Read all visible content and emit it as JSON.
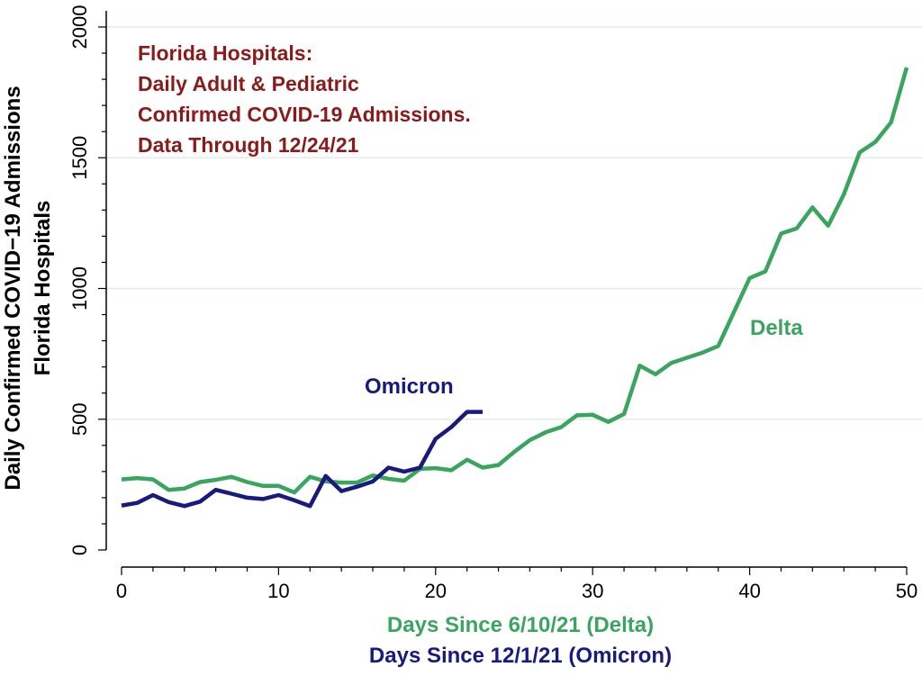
{
  "chart_data": {
    "type": "line",
    "annotation_lines": [
      "Florida Hospitals:",
      "Daily Adult & Pediatric",
      "Confirmed COVID-19 Admissions.",
      "Data Through 12/24/21"
    ],
    "ylabel_lines": [
      "Daily Confirmed COVID−19 Admissions",
      "Florida Hospitals"
    ],
    "xlabel_lines": [
      {
        "text": "Days Since 6/10/21 (Delta)",
        "color": "#3aa55f"
      },
      {
        "text": "Days Since 12/1/21 (Omicron)",
        "color": "#1a1a7e"
      }
    ],
    "xlim": [
      0,
      50
    ],
    "ylim": [
      0,
      2000
    ],
    "xticks": [
      0,
      10,
      20,
      30,
      40,
      50
    ],
    "yticks": [
      0,
      500,
      1000,
      1500,
      2000
    ],
    "grid": true,
    "series": [
      {
        "name": "Delta",
        "color": "#3aa55f",
        "x": [
          0,
          1,
          2,
          3,
          4,
          5,
          6,
          7,
          8,
          9,
          10,
          11,
          12,
          13,
          14,
          15,
          16,
          17,
          18,
          19,
          20,
          21,
          22,
          23,
          24,
          25,
          26,
          27,
          28,
          29,
          30,
          31,
          32,
          33,
          34,
          35,
          36,
          37,
          38,
          39,
          40,
          41,
          42,
          43,
          44,
          45,
          46,
          47,
          48,
          49,
          50
        ],
        "y": [
          270,
          275,
          270,
          230,
          235,
          260,
          268,
          280,
          260,
          245,
          245,
          220,
          280,
          262,
          258,
          258,
          285,
          272,
          265,
          310,
          313,
          305,
          345,
          315,
          325,
          375,
          420,
          450,
          470,
          515,
          517,
          490,
          520,
          705,
          672,
          715,
          735,
          755,
          780,
          910,
          1040,
          1065,
          1210,
          1230,
          1310,
          1240,
          1360,
          1520,
          1560,
          1635,
          1845
        ]
      },
      {
        "name": "Omicron",
        "color": "#1a1a7e",
        "x": [
          0,
          1,
          2,
          3,
          4,
          5,
          6,
          7,
          8,
          9,
          10,
          11,
          12,
          13,
          14,
          15,
          16,
          17,
          18,
          19,
          20,
          21,
          22,
          23
        ],
        "y": [
          170,
          180,
          210,
          183,
          168,
          185,
          230,
          215,
          200,
          195,
          210,
          190,
          168,
          283,
          225,
          242,
          262,
          315,
          300,
          315,
          425,
          470,
          528,
          528
        ]
      }
    ]
  }
}
